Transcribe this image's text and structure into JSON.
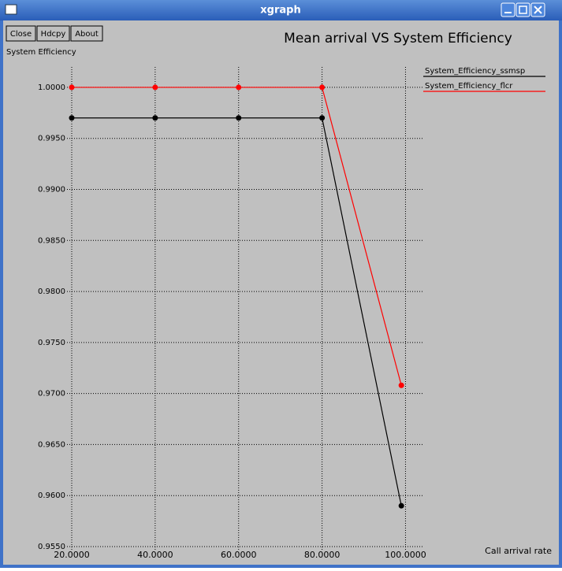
{
  "window": {
    "title": "xgraph",
    "buttons": [
      "Close",
      "Hdcpy",
      "About"
    ]
  },
  "chart_data": {
    "type": "line",
    "title": "Mean arrival VS System Efficiency",
    "y_label": "System Efficiency",
    "x_label": "Call arrival rate",
    "x": [
      20,
      40,
      60,
      80,
      99
    ],
    "series": [
      {
        "name": "System_Efficiency_ssmsp",
        "color": "#000000",
        "values": [
          0.997,
          0.997,
          0.997,
          0.997,
          0.959
        ]
      },
      {
        "name": "System_Efficiency_flcr",
        "color": "#ff0000",
        "values": [
          1.0,
          1.0,
          1.0,
          1.0,
          0.9708
        ]
      }
    ],
    "xlim": [
      20,
      103.5
    ],
    "ylim": [
      0.955,
      1.002
    ],
    "xticks": [
      {
        "value": 20,
        "label": "20.0000"
      },
      {
        "value": 40,
        "label": "40.0000"
      },
      {
        "value": 60,
        "label": "60.0000"
      },
      {
        "value": 80,
        "label": "80.0000"
      },
      {
        "value": 100,
        "label": "100.0000"
      }
    ],
    "yticks": [
      {
        "value": 0.955,
        "label": "0.9550"
      },
      {
        "value": 0.96,
        "label": "0.9600"
      },
      {
        "value": 0.965,
        "label": "0.9650"
      },
      {
        "value": 0.97,
        "label": "0.9700"
      },
      {
        "value": 0.975,
        "label": "0.9750"
      },
      {
        "value": 0.98,
        "label": "0.9800"
      },
      {
        "value": 0.985,
        "label": "0.9850"
      },
      {
        "value": 0.99,
        "label": "0.9900"
      },
      {
        "value": 0.995,
        "label": "0.9950"
      },
      {
        "value": 1.0,
        "label": "1.0000"
      }
    ],
    "grid": true,
    "legend": "right"
  }
}
